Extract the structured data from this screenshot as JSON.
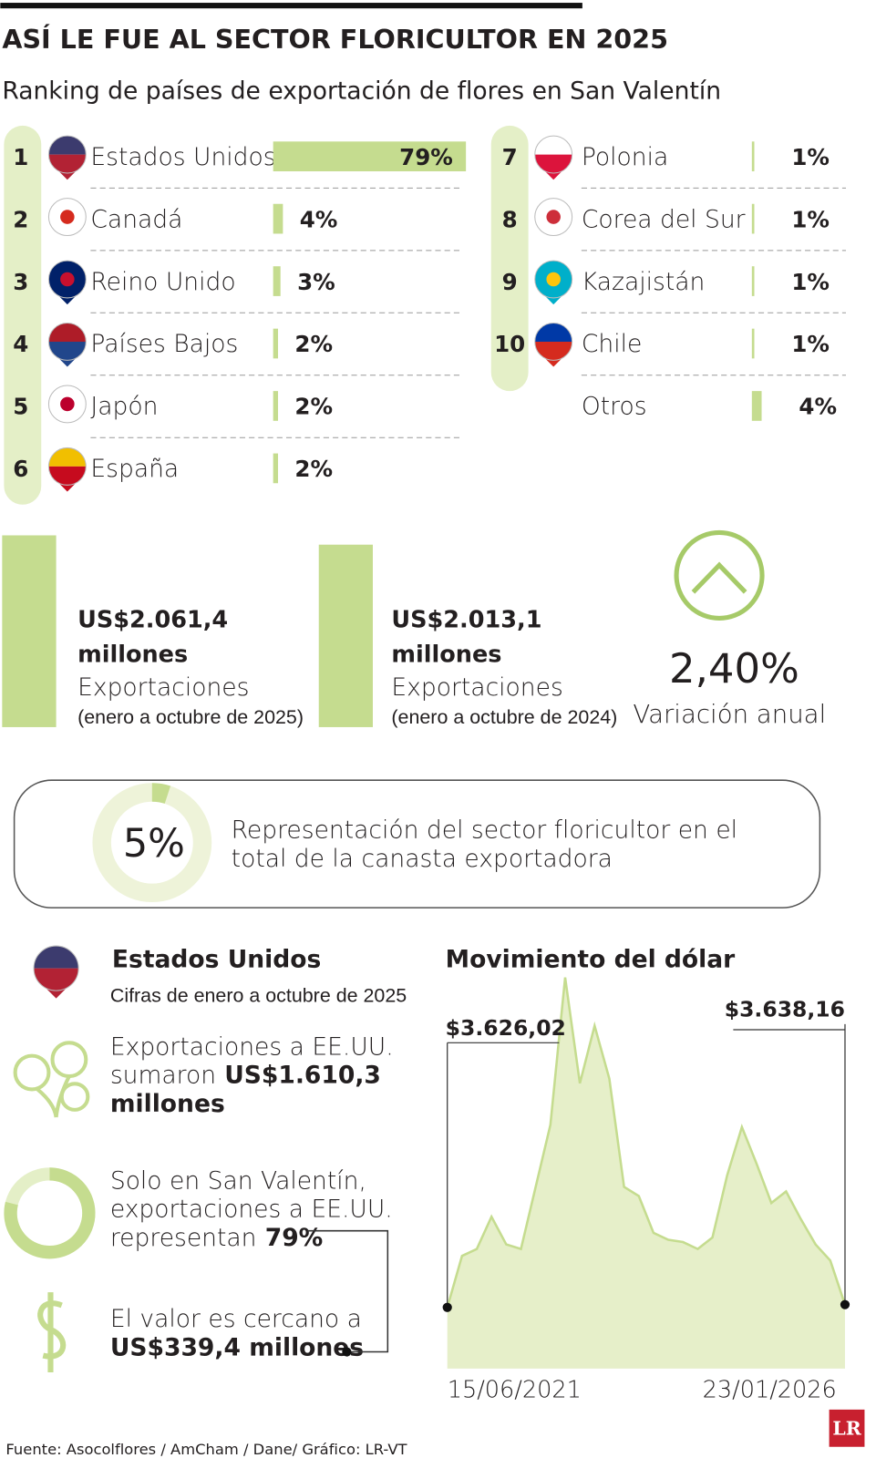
{
  "header": {
    "title": "ASÍ LE FUE AL SECTOR FLORICULTOR EN 2025",
    "subtitle": "Ranking de países de exportación de flores en San Valentín"
  },
  "chart_data": [
    {
      "type": "bar",
      "ranks": [
        1,
        2,
        3,
        4,
        5,
        6,
        7,
        8,
        9,
        10,
        null
      ],
      "categories": [
        "Estados Unidos",
        "Canadá",
        "Reino Unido",
        "Países Bajos",
        "Japón",
        "España",
        "Polonia",
        "Corea del Sur",
        "Kazajistán",
        "Chile",
        "Otros"
      ],
      "values": [
        79,
        4,
        3,
        2,
        2,
        2,
        1,
        1,
        1,
        1,
        4
      ],
      "value_labels": [
        "79%",
        "4%",
        "3%",
        "2%",
        "2%",
        "2%",
        "1%",
        "1%",
        "1%",
        "1%",
        "4%"
      ],
      "color": "#c5dc8f"
    },
    {
      "type": "area",
      "title": "Movimiento del dólar",
      "categories": [
        "15/06/2021",
        null,
        null,
        null,
        null,
        null,
        null,
        null,
        null,
        null,
        null,
        null,
        null,
        null,
        null,
        null,
        null,
        null,
        null,
        null,
        null,
        null,
        null,
        null,
        null,
        null,
        null,
        "23/01/2026"
      ],
      "values": [
        3626.02,
        3850,
        3880,
        4020,
        3900,
        3880,
        4150,
        4420,
        5060,
        4600,
        4850,
        4620,
        4150,
        4110,
        3950,
        3920,
        3910,
        3880,
        3930,
        4200,
        4410,
        4250,
        4080,
        4130,
        4010,
        3900,
        3830,
        3638.16
      ],
      "value_labels": [
        "$3.626,02",
        null,
        null,
        null,
        null,
        null,
        null,
        null,
        null,
        null,
        null,
        null,
        null,
        null,
        null,
        null,
        null,
        null,
        null,
        null,
        null,
        null,
        null,
        null,
        null,
        null,
        null,
        "$3.638,16"
      ],
      "ylim": [
        3360,
        5100
      ],
      "color": "#c5dc8f"
    }
  ],
  "exports": [
    {
      "amount": "US$2.061,4",
      "unit": "millones",
      "label": "Exportaciones",
      "period": "(enero a octubre de 2025)"
    },
    {
      "amount": "US$2.013,1",
      "unit": "millones",
      "label": "Exportaciones",
      "period": "(enero a octubre de 2024)"
    }
  ],
  "variation": {
    "value": "2,40%",
    "label": "Variación anual"
  },
  "share": {
    "value": 5,
    "value_label": "5%",
    "lines": [
      "Representación del sector floricultor en el",
      "total de la canasta exportadora"
    ]
  },
  "usa": {
    "title": "Estados Unidos",
    "subtitle": "Cifras de enero a octubre de 2025",
    "exports_text": [
      "Exportaciones a EE.UU.",
      "sumaron"
    ],
    "exports_amount": [
      "US$1.610,3",
      "millones"
    ],
    "share_text": [
      "Solo en San Valentín,",
      "exportaciones a EE.UU.",
      "representan"
    ],
    "share_value": 79,
    "share_label": "79%",
    "value_text": "El valor es cercano a",
    "value_amount": "US$339,4 millones"
  },
  "footer": {
    "source": "Fuente: Asocolflores / AmCham / Dane/ Gráfico: LR-VT",
    "logo": "LR"
  }
}
